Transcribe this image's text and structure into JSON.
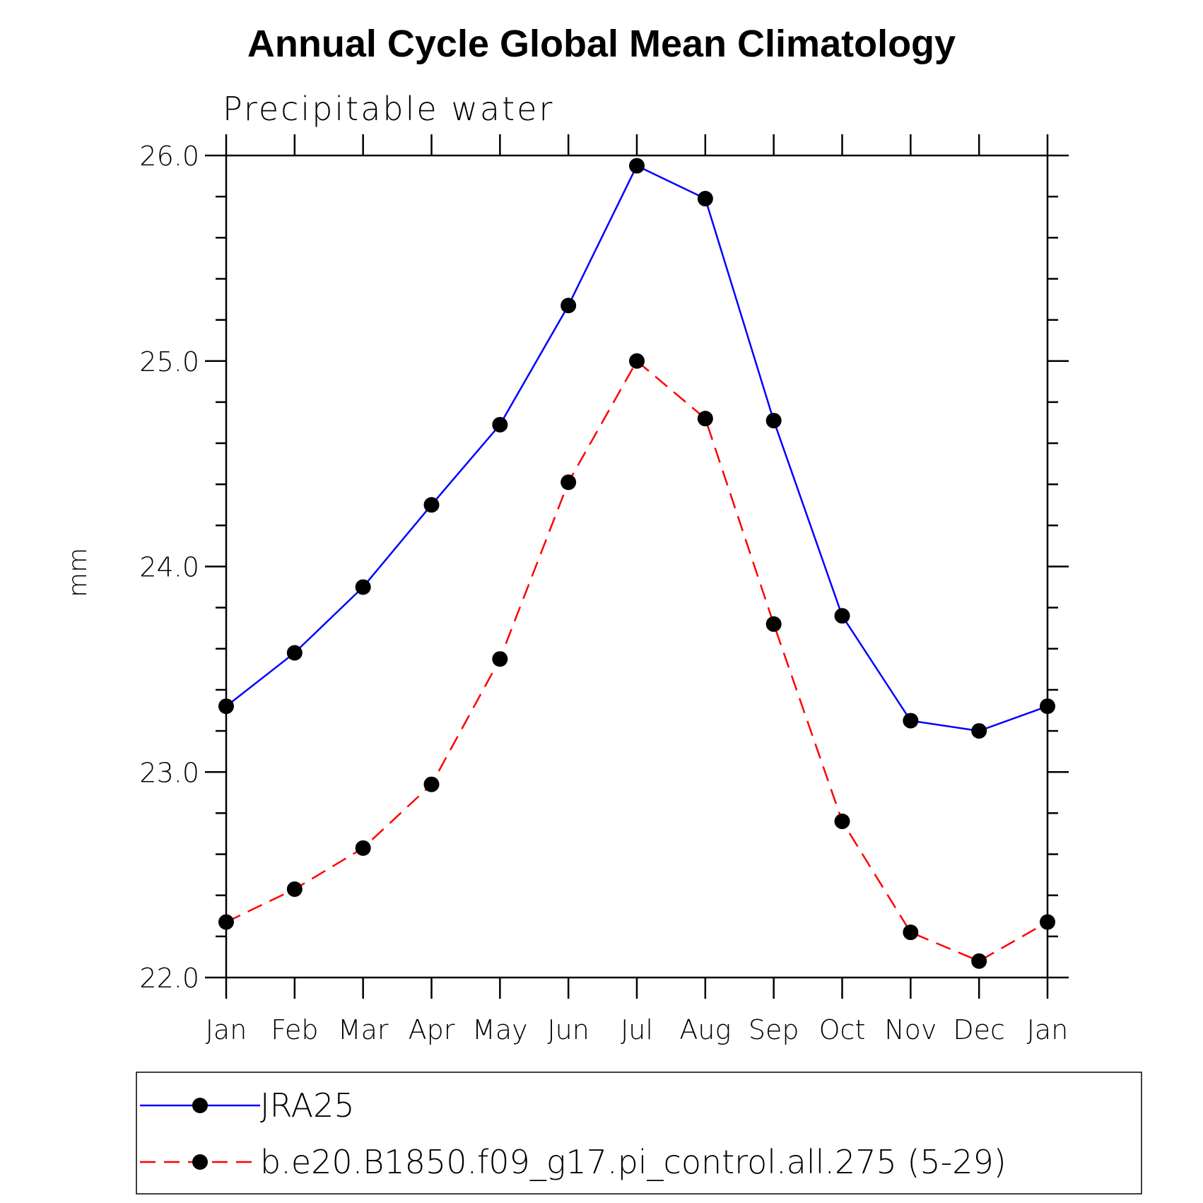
{
  "chart_data": {
    "type": "line",
    "title": "Annual Cycle Global Mean Climatology",
    "subtitle": "Precipitable water",
    "xlabel": "",
    "ylabel": "mm",
    "categories": [
      "Jan",
      "Feb",
      "Mar",
      "Apr",
      "May",
      "Jun",
      "Jul",
      "Aug",
      "Sep",
      "Oct",
      "Nov",
      "Dec",
      "Jan"
    ],
    "ylim": [
      22.0,
      26.0
    ],
    "yticks": [
      "22.0",
      "23.0",
      "24.0",
      "25.0",
      "26.0"
    ],
    "grid": false,
    "legend_position": "bottom",
    "series": [
      {
        "name": "JRA25",
        "color": "#0000ff",
        "line_style": "solid",
        "marker": "filled-circle",
        "values": [
          23.32,
          23.58,
          23.9,
          24.3,
          24.69,
          25.27,
          25.95,
          25.79,
          24.71,
          23.76,
          23.25,
          23.2,
          23.32
        ]
      },
      {
        "name": "b.e20.B1850.f09_g17.pi_control.all.275 (5-29)",
        "color": "#ff0000",
        "line_style": "dashed",
        "marker": "filled-circle",
        "values": [
          22.27,
          22.43,
          22.63,
          22.94,
          23.55,
          24.41,
          25.0,
          24.72,
          23.72,
          22.76,
          22.22,
          22.08,
          22.27
        ]
      }
    ]
  }
}
